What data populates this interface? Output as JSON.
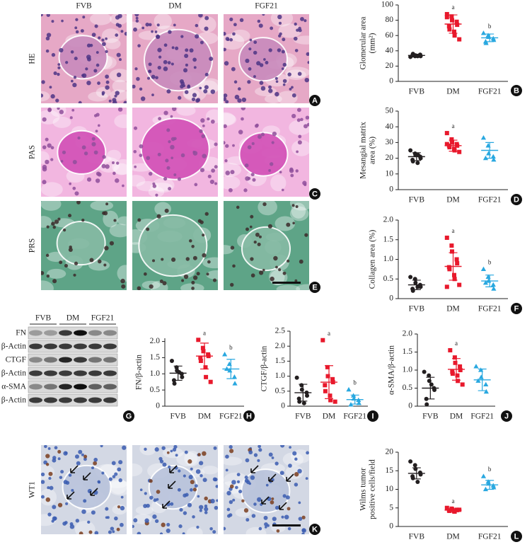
{
  "images": {
    "columns": [
      "FVB",
      "DM",
      "FGF21"
    ],
    "rows": [
      {
        "label": "HE",
        "panel": "A"
      },
      {
        "label": "PAS",
        "panel": "C"
      },
      {
        "label": "PRS",
        "panel": "E"
      }
    ],
    "wt1": {
      "label": "WT1",
      "panel": "K"
    }
  },
  "blot": {
    "groups": [
      "FVB",
      "DM",
      "FGF21"
    ],
    "rows": [
      "FN",
      "β-Actin",
      "CTGF",
      "β-Actin",
      "α-SMA",
      "β-Actin"
    ],
    "panel": "G"
  },
  "chart_data": [
    {
      "type": "dot",
      "panel": "B",
      "ylabel": [
        "Glomerular area",
        "(mm²)"
      ],
      "categories": [
        "FVB",
        "DM",
        "FGF21"
      ],
      "colors": [
        "#231f20",
        "#e8192c",
        "#29a8e0"
      ],
      "markers": [
        "circle",
        "square",
        "triangle"
      ],
      "points": [
        [
          32,
          33,
          34,
          35,
          33,
          34,
          36,
          33
        ],
        [
          88,
          85,
          80,
          78,
          74,
          72,
          68,
          65,
          60,
          55,
          84
        ],
        [
          63,
          60,
          58,
          56,
          54,
          52,
          50
        ]
      ],
      "means": [
        34,
        75,
        57
      ],
      "sds": [
        1.5,
        12,
        5
      ],
      "annotations": [
        null,
        "a",
        "b"
      ],
      "ylim": [
        0,
        100
      ],
      "yticks": [
        0,
        20,
        40,
        60,
        80,
        100
      ]
    },
    {
      "type": "dot",
      "panel": "D",
      "ylabel": [
        "Mesangial matrix",
        "area (%)"
      ],
      "categories": [
        "FVB",
        "DM",
        "FGF21"
      ],
      "colors": [
        "#231f20",
        "#e8192c",
        "#29a8e0"
      ],
      "markers": [
        "circle",
        "square",
        "triangle"
      ],
      "points": [
        [
          25,
          23,
          22,
          21,
          20,
          19,
          18,
          17,
          22
        ],
        [
          36,
          32,
          30,
          29,
          28,
          28,
          27,
          26,
          25,
          24,
          29
        ],
        [
          33,
          28,
          23,
          21,
          19,
          20
        ]
      ],
      "means": [
        21,
        28,
        25
      ],
      "sds": [
        2.5,
        3.5,
        5
      ],
      "annotations": [
        null,
        "a",
        null
      ],
      "ylim": [
        0,
        50
      ],
      "yticks": [
        0,
        10,
        20,
        30,
        40,
        50
      ]
    },
    {
      "type": "dot",
      "panel": "F",
      "ylabel": [
        "Collagen area (%)"
      ],
      "categories": [
        "FVB",
        "DM",
        "FGF21"
      ],
      "colors": [
        "#231f20",
        "#e8192c",
        "#29a8e0"
      ],
      "markers": [
        "circle",
        "square",
        "triangle"
      ],
      "points": [
        [
          0.55,
          0.5,
          0.4,
          0.35,
          0.3,
          0.25,
          0.2,
          0.3
        ],
        [
          1.55,
          1.35,
          1.2,
          1.0,
          0.9,
          0.8,
          0.75,
          0.6,
          0.5,
          0.35,
          0.3
        ],
        [
          0.75,
          0.55,
          0.45,
          0.35,
          0.25,
          0.4
        ]
      ],
      "means": [
        0.35,
        0.82,
        0.45
      ],
      "sds": [
        0.12,
        0.35,
        0.15
      ],
      "annotations": [
        null,
        "a",
        "b"
      ],
      "ylim": [
        0,
        2.0
      ],
      "yticks": [
        0,
        0.5,
        {
          "value": 1,
          "label": "1.0"
        },
        1.5,
        {
          "value": 2,
          "label": "2.0"
        }
      ]
    },
    {
      "type": "dot",
      "panel": "H",
      "ylabel": [
        "FN/β-actin"
      ],
      "categories": [
        "FVB",
        "DM",
        "FGF21"
      ],
      "colors": [
        "#231f20",
        "#e8192c",
        "#29a8e0"
      ],
      "markers": [
        "circle",
        "square",
        "triangle"
      ],
      "points": [
        [
          1.4,
          1.2,
          1.1,
          1.0,
          0.9,
          0.8,
          0.7,
          1.05
        ],
        [
          2.05,
          1.8,
          1.7,
          1.6,
          1.55,
          1.5,
          1.4,
          1.2,
          0.9,
          0.75
        ],
        [
          1.6,
          1.3,
          1.1,
          0.9,
          0.7,
          1.15
        ]
      ],
      "means": [
        1.02,
        1.55,
        1.15
      ],
      "sds": [
        0.22,
        0.4,
        0.3
      ],
      "annotations": [
        null,
        "a",
        "b"
      ],
      "ylim": [
        0,
        2.1
      ],
      "yticks": [
        0,
        0.5,
        {
          "value": 1,
          "label": "1.0"
        },
        1.5,
        {
          "value": 2,
          "label": "2.0"
        }
      ]
    },
    {
      "type": "dot",
      "panel": "I",
      "ylabel": [
        "CTGF/β-actin"
      ],
      "categories": [
        "FVB",
        "DM",
        "FGF21"
      ],
      "colors": [
        "#231f20",
        "#e8192c",
        "#29a8e0"
      ],
      "markers": [
        "circle",
        "square",
        "triangle"
      ],
      "points": [
        [
          0.95,
          0.7,
          0.55,
          0.45,
          0.35,
          0.25,
          0.15,
          0.1
        ],
        [
          2.2,
          1.3,
          1.0,
          0.9,
          0.8,
          0.7,
          0.5,
          0.35,
          0.2,
          0.15
        ],
        [
          0.55,
          0.35,
          0.25,
          0.2,
          0.1,
          0.05
        ]
      ],
      "means": [
        0.45,
        0.8,
        0.22
      ],
      "sds": [
        0.28,
        0.55,
        0.15
      ],
      "annotations": [
        null,
        "a",
        "b"
      ],
      "ylim": [
        0,
        2.5
      ],
      "yticks": [
        0,
        0.5,
        {
          "value": 1,
          "label": "1.0"
        },
        1.5,
        {
          "value": 2,
          "label": "2.0"
        },
        2.5
      ]
    },
    {
      "type": "dot",
      "panel": "J",
      "ylabel": [
        "α-SMA/β-actin"
      ],
      "categories": [
        "FVB",
        "DM",
        "FGF21"
      ],
      "colors": [
        "#231f20",
        "#e8192c",
        "#29a8e0"
      ],
      "markers": [
        "circle",
        "square",
        "triangle"
      ],
      "points": [
        [
          0.95,
          0.85,
          0.7,
          0.5,
          0.45,
          0.2,
          0.05,
          0.6
        ],
        [
          1.55,
          1.35,
          1.2,
          1.1,
          1.0,
          0.95,
          0.9,
          0.85,
          0.7,
          0.6
        ],
        [
          1.1,
          1.0,
          0.8,
          0.6,
          0.4,
          0.7
        ]
      ],
      "means": [
        0.5,
        1.02,
        0.73
      ],
      "sds": [
        0.3,
        0.3,
        0.3
      ],
      "annotations": [
        null,
        "a",
        null
      ],
      "ylim": [
        0,
        2.0
      ],
      "yticks": [
        0,
        0.5,
        {
          "value": 1,
          "label": "1.0"
        },
        1.5,
        {
          "value": 2,
          "label": "2.0"
        }
      ]
    },
    {
      "type": "dot",
      "panel": "L",
      "ylabel": [
        "Wilms tumor",
        "positive cells/field"
      ],
      "categories": [
        "FVB",
        "DM",
        "FGF21"
      ],
      "colors": [
        "#231f20",
        "#e8192c",
        "#29a8e0"
      ],
      "markers": [
        "circle",
        "square",
        "triangle"
      ],
      "points": [
        [
          17.5,
          16.5,
          15.5,
          14.5,
          14,
          13.5,
          13,
          12
        ],
        [
          5,
          4.8,
          4.6,
          4.5,
          4.4,
          4.3,
          4.2,
          4.1,
          4.0,
          4.5
        ],
        [
          13.5,
          12,
          11.5,
          11,
          10.5,
          10
        ]
      ],
      "means": [
        14.3,
        4.4,
        11.2
      ],
      "sds": [
        1.5,
        0.4,
        1.2
      ],
      "annotations": [
        null,
        "a",
        "b"
      ],
      "ylim": [
        0,
        20
      ],
      "yticks": [
        0,
        5,
        10,
        15,
        20
      ]
    }
  ]
}
